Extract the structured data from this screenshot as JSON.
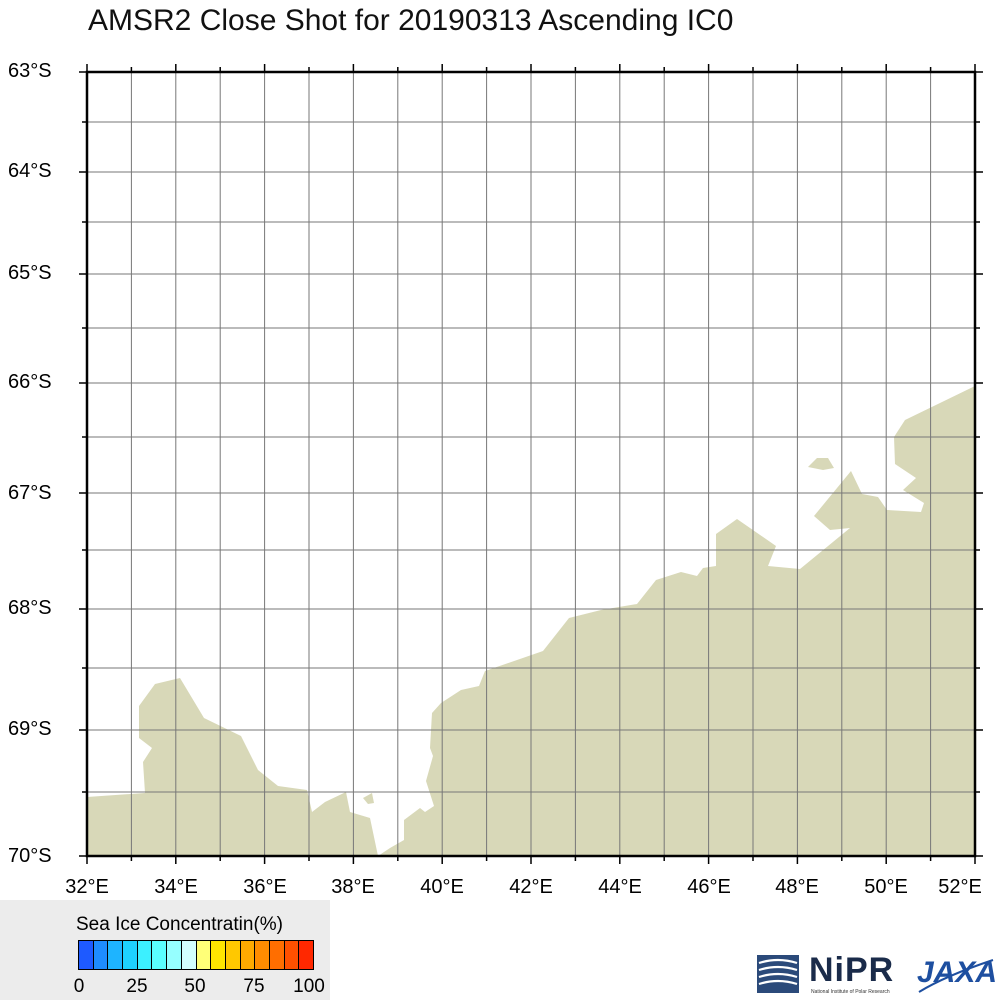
{
  "title": "AMSR2 Close Shot for 20190313 Ascending IC0",
  "map": {
    "lat_labels": [
      "63°S",
      "64°S",
      "65°S",
      "66°S",
      "67°S",
      "68°S",
      "69°S",
      "70°S"
    ],
    "lon_labels": [
      "32°E",
      "34°E",
      "36°E",
      "38°E",
      "40°E",
      "42°E",
      "44°E",
      "46°E",
      "48°E",
      "50°E",
      "52°E"
    ],
    "land_color": "#d8d8b8",
    "ocean_color": "#ffffff",
    "grid_color": "#777777"
  },
  "legend": {
    "title": "Sea Ice Concentratin(%)",
    "ticks": [
      "0",
      "25",
      "50",
      "75",
      "100"
    ],
    "colors": [
      "#1e5aff",
      "#1e8cff",
      "#1eb4ff",
      "#1ed2ff",
      "#3cf0ff",
      "#5affff",
      "#96ffff",
      "#d2ffff",
      "#ffff78",
      "#ffe600",
      "#ffc800",
      "#ffaa00",
      "#ff8c00",
      "#ff6e00",
      "#ff5000",
      "#ff2800"
    ]
  },
  "logos": {
    "nipr": "NiPR",
    "nipr_sub": "National Institute of Polar Research",
    "jaxa": "JAXA"
  }
}
